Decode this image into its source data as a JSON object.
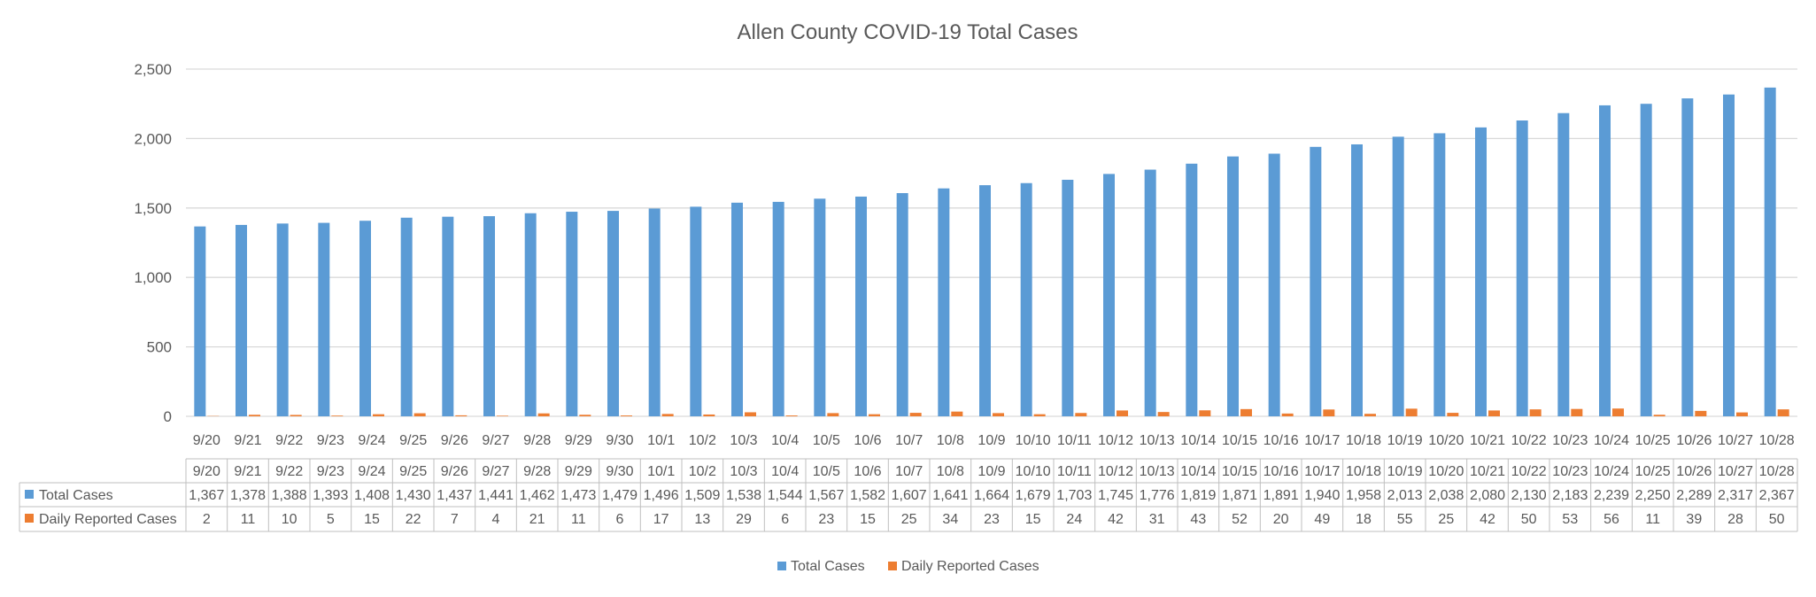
{
  "chart_data": {
    "type": "bar",
    "title": "Allen County COVID-19 Total Cases",
    "xlabel": "",
    "ylabel": "",
    "ylim": [
      0,
      2500
    ],
    "yticks": [
      0,
      500,
      1000,
      1500,
      2000,
      2500
    ],
    "ytick_labels": [
      "0",
      "500",
      "1,000",
      "1,500",
      "2,000",
      "2,500"
    ],
    "grid": true,
    "legend_position": "bottom",
    "categories": [
      "9/20",
      "9/21",
      "9/22",
      "9/23",
      "9/24",
      "9/25",
      "9/26",
      "9/27",
      "9/28",
      "9/29",
      "9/30",
      "10/1",
      "10/2",
      "10/3",
      "10/4",
      "10/5",
      "10/6",
      "10/7",
      "10/8",
      "10/9",
      "10/10",
      "10/11",
      "10/12",
      "10/13",
      "10/14",
      "10/15",
      "10/16",
      "10/17",
      "10/18",
      "10/19",
      "10/20",
      "10/21",
      "10/22",
      "10/23",
      "10/24",
      "10/25",
      "10/26",
      "10/27",
      "10/28"
    ],
    "series": [
      {
        "name": "Total Cases",
        "color": "#5B9BD5",
        "values": [
          1367,
          1378,
          1388,
          1393,
          1408,
          1430,
          1437,
          1441,
          1462,
          1473,
          1479,
          1496,
          1509,
          1538,
          1544,
          1567,
          1582,
          1607,
          1641,
          1664,
          1679,
          1703,
          1745,
          1776,
          1819,
          1871,
          1891,
          1940,
          1958,
          2013,
          2038,
          2080,
          2130,
          2183,
          2239,
          2250,
          2289,
          2317,
          2367
        ],
        "value_labels": [
          "1,367",
          "1,378",
          "1,388",
          "1,393",
          "1,408",
          "1,430",
          "1,437",
          "1,441",
          "1,462",
          "1,473",
          "1,479",
          "1,496",
          "1,509",
          "1,538",
          "1,544",
          "1,567",
          "1,582",
          "1,607",
          "1,641",
          "1,664",
          "1,679",
          "1,703",
          "1,745",
          "1,776",
          "1,819",
          "1,871",
          "1,891",
          "1,940",
          "1,958",
          "2,013",
          "2,038",
          "2,080",
          "2,130",
          "2,183",
          "2,239",
          "2,250",
          "2,289",
          "2,317",
          "2,367"
        ]
      },
      {
        "name": "Daily Reported Cases",
        "color": "#ED7D31",
        "values": [
          2,
          11,
          10,
          5,
          15,
          22,
          7,
          4,
          21,
          11,
          6,
          17,
          13,
          29,
          6,
          23,
          15,
          25,
          34,
          23,
          15,
          24,
          42,
          31,
          43,
          52,
          20,
          49,
          18,
          55,
          25,
          42,
          50,
          53,
          56,
          11,
          39,
          28,
          50
        ],
        "value_labels": [
          "2",
          "11",
          "10",
          "5",
          "15",
          "22",
          "7",
          "4",
          "21",
          "11",
          "6",
          "17",
          "13",
          "29",
          "6",
          "23",
          "15",
          "25",
          "34",
          "23",
          "15",
          "24",
          "42",
          "31",
          "43",
          "52",
          "20",
          "49",
          "18",
          "55",
          "25",
          "42",
          "50",
          "53",
          "56",
          "11",
          "39",
          "28",
          "50"
        ]
      }
    ]
  }
}
